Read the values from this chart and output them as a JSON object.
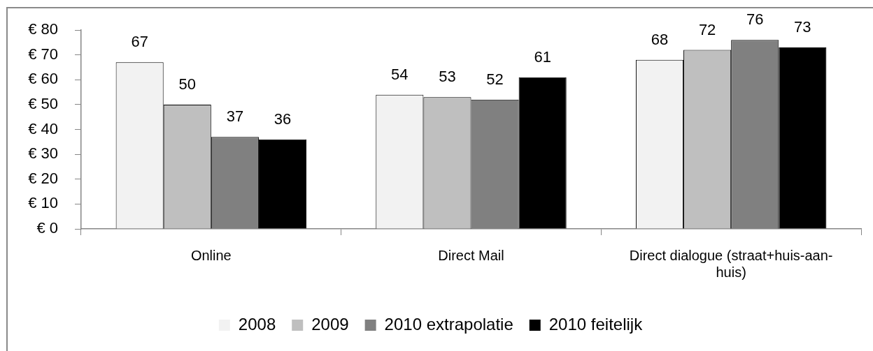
{
  "chart_data": {
    "type": "bar",
    "categories": [
      "Online",
      "Direct Mail",
      "Direct dialogue (straat+huis-aan-huis)"
    ],
    "series": [
      {
        "name": "2008",
        "color": "#f2f2f2",
        "values": [
          67,
          54,
          68
        ]
      },
      {
        "name": "2009",
        "color": "#bfbfbf",
        "values": [
          50,
          53,
          72
        ]
      },
      {
        "name": "2010 extrapolatie",
        "color": "#808080",
        "values": [
          37,
          52,
          76
        ]
      },
      {
        "name": "2010 feitelijk",
        "color": "#000000",
        "values": [
          36,
          61,
          73
        ]
      }
    ],
    "ylim": [
      0,
      80
    ],
    "yticks": [
      {
        "value": 0,
        "label": "€ 0"
      },
      {
        "value": 10,
        "label": "€ 10"
      },
      {
        "value": 20,
        "label": "€ 20"
      },
      {
        "value": 30,
        "label": "€ 30"
      },
      {
        "value": 40,
        "label": "€ 40"
      },
      {
        "value": 50,
        "label": "€ 50"
      },
      {
        "value": 60,
        "label": "€ 60"
      },
      {
        "value": 70,
        "label": "€ 70"
      },
      {
        "value": 80,
        "label": "€ 80"
      }
    ],
    "grid": false,
    "legend": "bottom",
    "data_labels": true
  }
}
